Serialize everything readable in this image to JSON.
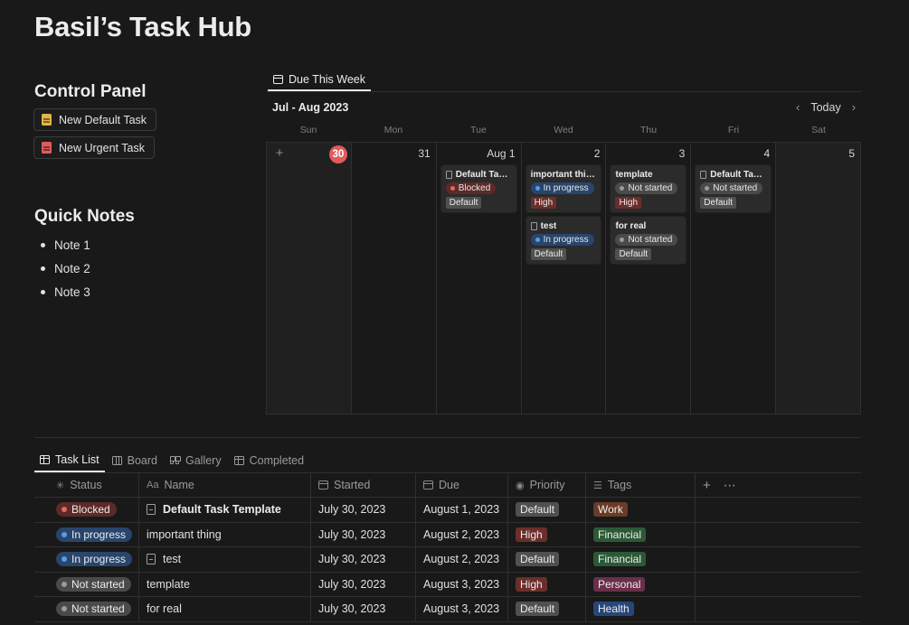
{
  "page": {
    "title": "Basil’s Task Hub"
  },
  "control_panel": {
    "title": "Control Panel",
    "buttons": [
      {
        "label": "New Default Task",
        "color": "#e0b54a"
      },
      {
        "label": "New Urgent Task",
        "color": "#e05b5b"
      }
    ]
  },
  "quick_notes": {
    "title": "Quick Notes",
    "items": [
      "Note 1",
      "Note 2",
      "Note 3"
    ]
  },
  "calendar": {
    "tab_label": "Due This Week",
    "month_label": "Jul - Aug 2023",
    "today_label": "Today",
    "weekdays": [
      "Sun",
      "Mon",
      "Tue",
      "Wed",
      "Thu",
      "Fri",
      "Sat"
    ],
    "days": [
      {
        "label": "30",
        "today": true,
        "cards": []
      },
      {
        "label": "31",
        "cards": []
      },
      {
        "label": "Aug 1",
        "cards": [
          {
            "title": "Default Task...",
            "doc_icon": true,
            "status": "Blocked",
            "priority": "Default"
          }
        ]
      },
      {
        "label": "2",
        "cards": [
          {
            "title": "important thing",
            "status": "In progress",
            "priority": "High"
          },
          {
            "title": "test",
            "doc_icon": true,
            "status": "In progress",
            "priority": "Default"
          }
        ]
      },
      {
        "label": "3",
        "cards": [
          {
            "title": "template",
            "status": "Not started",
            "priority": "High"
          },
          {
            "title": "for real",
            "status": "Not started",
            "priority": "Default"
          }
        ]
      },
      {
        "label": "4",
        "cards": [
          {
            "title": "Default Task...",
            "doc_icon": true,
            "status": "Not started",
            "priority": "Default"
          }
        ]
      },
      {
        "label": "5",
        "cards": []
      }
    ]
  },
  "database": {
    "tabs": [
      {
        "label": "Task List",
        "icon": "table-icon",
        "active": true
      },
      {
        "label": "Board",
        "icon": "board-icon"
      },
      {
        "label": "Gallery",
        "icon": "gallery-icon"
      },
      {
        "label": "Completed",
        "icon": "table-icon"
      }
    ],
    "columns": {
      "status": "Status",
      "name": "Name",
      "started": "Started",
      "due": "Due",
      "priority": "Priority",
      "tags": "Tags"
    },
    "name_column_prefix": "Aa",
    "rows": [
      {
        "status": "Blocked",
        "name": "Default Task Template",
        "doc_icon": true,
        "bold": true,
        "started": "July 30, 2023",
        "due": "August 1, 2023",
        "priority": "Default",
        "tag": "Work"
      },
      {
        "status": "In progress",
        "name": "important thing",
        "started": "July 30, 2023",
        "due": "August 2, 2023",
        "priority": "High",
        "tag": "Financial"
      },
      {
        "status": "In progress",
        "name": "test",
        "doc_icon": true,
        "started": "July 30, 2023",
        "due": "August 2, 2023",
        "priority": "Default",
        "tag": "Financial"
      },
      {
        "status": "Not started",
        "name": "template",
        "started": "July 30, 2023",
        "due": "August 3, 2023",
        "priority": "High",
        "tag": "Personal"
      },
      {
        "status": "Not started",
        "name": "for real",
        "started": "July 30, 2023",
        "due": "August 3, 2023",
        "priority": "Default",
        "tag": "Health"
      }
    ]
  },
  "colors": {
    "background": "#191919",
    "today_badge": "#e05b5b",
    "status_blocked": "#5c2a28",
    "status_in_progress": "#28456c",
    "status_not_started": "#4a4a4a",
    "priority_high": "#6b2e2a",
    "priority_default": "#505050",
    "tag_work": "#6a3b26",
    "tag_financial": "#2b5936",
    "tag_personal": "#6b2f4a",
    "tag_health": "#27467a"
  }
}
